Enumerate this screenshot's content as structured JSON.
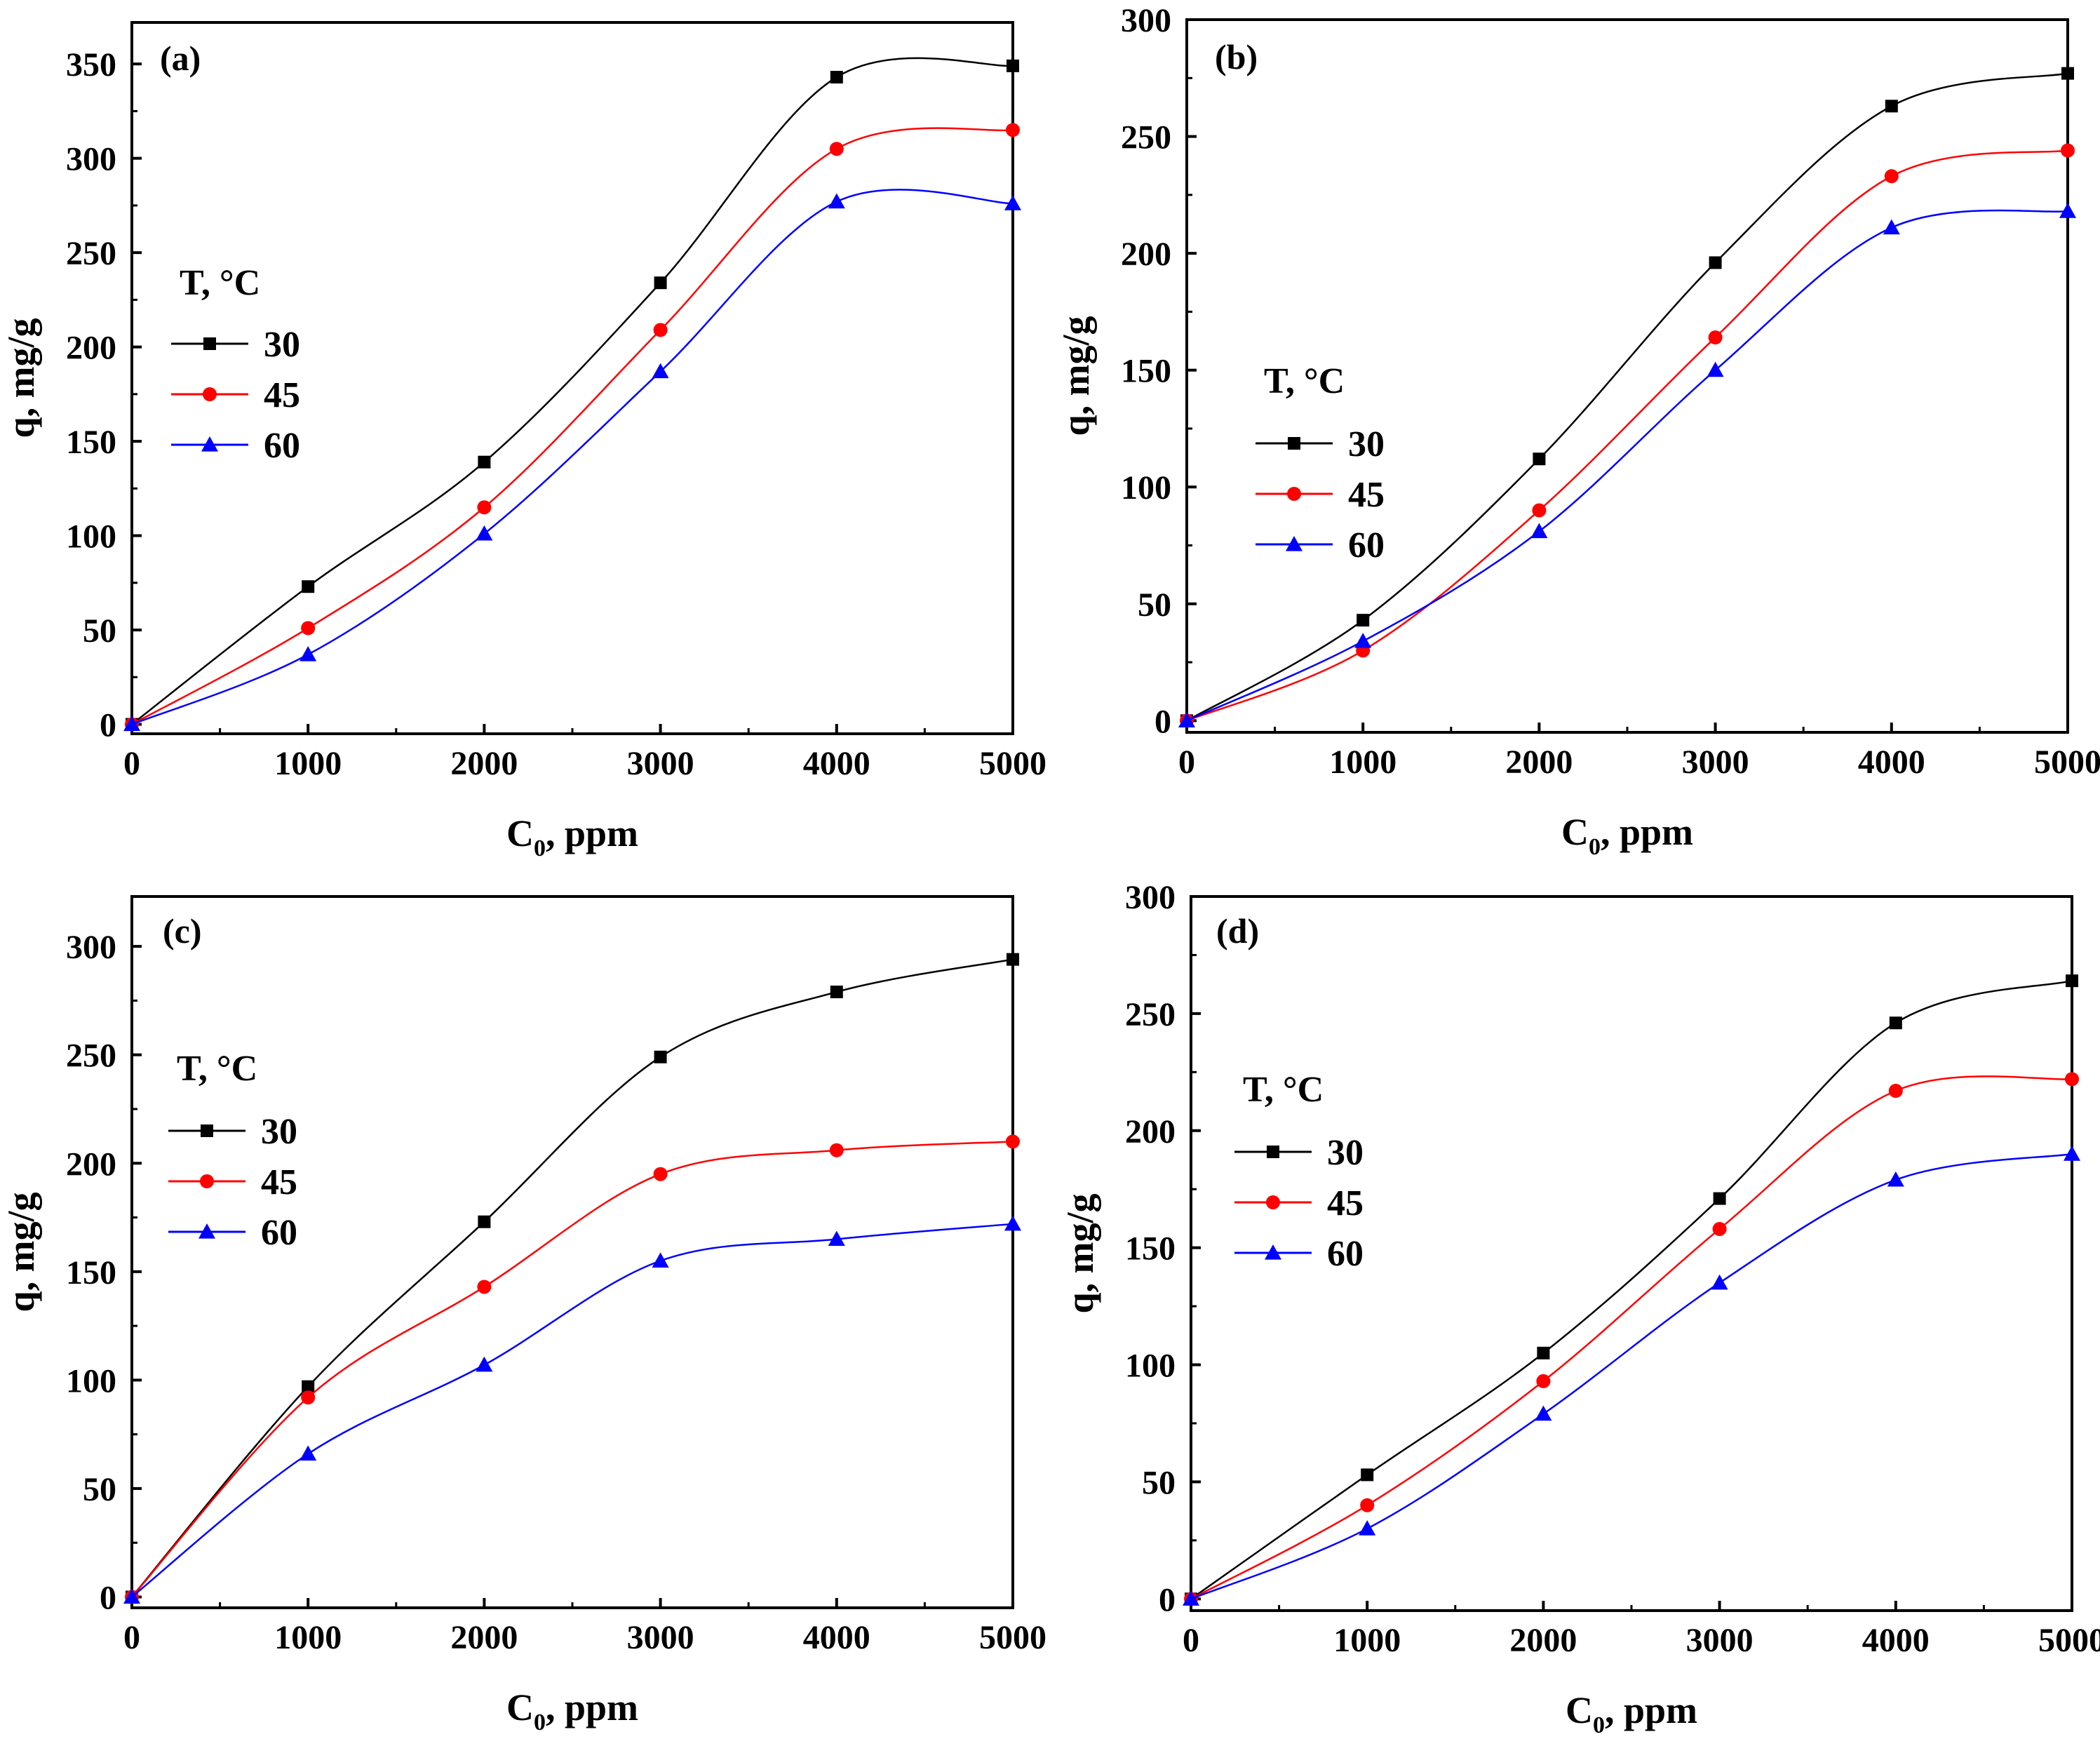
{
  "figure": {
    "colors": {
      "30": "#000000",
      "45": "#ff0000",
      "60": "#0000ff"
    },
    "legend_placement": "left-middle"
  },
  "chart_data": [
    {
      "type": "line",
      "label": "(a)",
      "xlabel": "C",
      "xlabel_sub": "0",
      "xlabel_suffix": ", ppm",
      "ylabel": "q, mg/g",
      "xlim": [
        0,
        5000
      ],
      "ylim": [
        -5,
        372
      ],
      "xticks": [
        0,
        1000,
        2000,
        3000,
        4000,
        5000
      ],
      "yticks": [
        0,
        50,
        100,
        150,
        200,
        250,
        300,
        350
      ],
      "legend_title": "T, °C",
      "x": [
        0,
        1000,
        2000,
        3000,
        4000,
        5000
      ],
      "series": [
        {
          "name": "30",
          "marker": "square",
          "color": "#000000",
          "values": [
            0,
            73,
            139,
            234,
            343,
            349
          ]
        },
        {
          "name": "45",
          "marker": "circle",
          "color": "#ff0000",
          "values": [
            0,
            51,
            115,
            209,
            305,
            315
          ]
        },
        {
          "name": "60",
          "marker": "triangle",
          "color": "#0000ff",
          "values": [
            0,
            37,
            101,
            187,
            277,
            276
          ]
        }
      ]
    },
    {
      "type": "line",
      "label": "(b)",
      "xlabel": "C",
      "xlabel_sub": "0",
      "xlabel_suffix": ", ppm",
      "ylabel": "q, mg/g",
      "xlim": [
        0,
        5000
      ],
      "ylim": [
        -5,
        300
      ],
      "xticks": [
        0,
        1000,
        2000,
        3000,
        4000,
        5000
      ],
      "yticks": [
        0,
        50,
        100,
        150,
        200,
        250,
        300
      ],
      "legend_title": "T, °C",
      "x": [
        0,
        1000,
        2000,
        3000,
        4000,
        5000
      ],
      "series": [
        {
          "name": "30",
          "marker": "square",
          "color": "#000000",
          "values": [
            0,
            43,
            112,
            196,
            263,
            277
          ]
        },
        {
          "name": "45",
          "marker": "circle",
          "color": "#ff0000",
          "values": [
            0,
            30,
            90,
            164,
            233,
            244
          ]
        },
        {
          "name": "60",
          "marker": "triangle",
          "color": "#0000ff",
          "values": [
            0,
            34,
            81,
            150,
            211,
            218
          ]
        }
      ]
    },
    {
      "type": "line",
      "label": "(c)",
      "xlabel": "C",
      "xlabel_sub": "0",
      "xlabel_suffix": ", ppm",
      "ylabel": "q, mg/g",
      "xlim": [
        0,
        5000
      ],
      "ylim": [
        -5,
        323
      ],
      "xticks": [
        0,
        1000,
        2000,
        3000,
        4000,
        5000
      ],
      "yticks": [
        0,
        50,
        100,
        150,
        200,
        250,
        300
      ],
      "legend_title": "T, °C",
      "x": [
        0,
        1000,
        2000,
        3000,
        4000,
        5000
      ],
      "series": [
        {
          "name": "30",
          "marker": "square",
          "color": "#000000",
          "values": [
            0,
            97,
            173,
            249,
            279,
            294
          ]
        },
        {
          "name": "45",
          "marker": "circle",
          "color": "#ff0000",
          "values": [
            0,
            92,
            143,
            195,
            206,
            210
          ]
        },
        {
          "name": "60",
          "marker": "triangle",
          "color": "#0000ff",
          "values": [
            0,
            66,
            107,
            155,
            165,
            172
          ]
        }
      ]
    },
    {
      "type": "line",
      "label": "(d)",
      "xlabel": "C",
      "xlabel_sub": "0",
      "xlabel_suffix": ", ppm",
      "ylabel": "q, mg/g",
      "xlim": [
        0,
        5000
      ],
      "ylim": [
        -5,
        300
      ],
      "xticks": [
        0,
        1000,
        2000,
        3000,
        4000,
        5000
      ],
      "yticks": [
        0,
        50,
        100,
        150,
        200,
        250,
        300
      ],
      "legend_title": "T, °C",
      "x": [
        0,
        1000,
        2000,
        3000,
        4000,
        5000
      ],
      "series": [
        {
          "name": "30",
          "marker": "square",
          "color": "#000000",
          "values": [
            0,
            53,
            105,
            171,
            246,
            264
          ]
        },
        {
          "name": "45",
          "marker": "circle",
          "color": "#ff0000",
          "values": [
            0,
            40,
            93,
            158,
            217,
            222
          ]
        },
        {
          "name": "60",
          "marker": "triangle",
          "color": "#0000ff",
          "values": [
            0,
            30,
            79,
            135,
            179,
            190
          ]
        }
      ]
    }
  ]
}
